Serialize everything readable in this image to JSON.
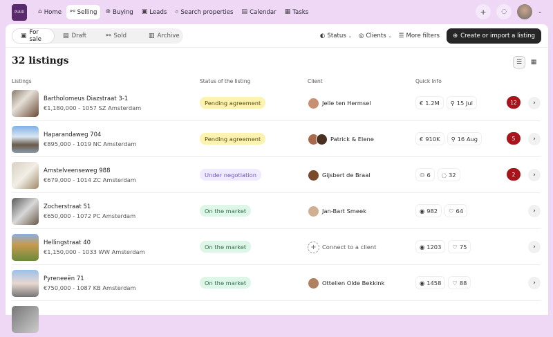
{
  "logo": "PUUR",
  "nav": [
    {
      "label": "Home",
      "icon": "home-icon",
      "glyph": "⌂"
    },
    {
      "label": "Selling",
      "icon": "selling-icon",
      "glyph": "⚯",
      "active": true
    },
    {
      "label": "Buying",
      "icon": "buying-icon",
      "glyph": "⊛"
    },
    {
      "label": "Leads",
      "icon": "leads-icon",
      "glyph": "▣"
    },
    {
      "label": "Search properties",
      "icon": "search-icon",
      "glyph": "⌕"
    },
    {
      "label": "Calendar",
      "icon": "calendar-icon",
      "glyph": "▤"
    },
    {
      "label": "Tasks",
      "icon": "tasks-icon",
      "glyph": "▦"
    }
  ],
  "tabs": [
    {
      "label": "For sale",
      "glyph": "▣",
      "active": true
    },
    {
      "label": "Draft",
      "glyph": "▤"
    },
    {
      "label": "Sold",
      "glyph": "⚯"
    },
    {
      "label": "Archive",
      "glyph": "▥"
    }
  ],
  "filters": {
    "status": "Status",
    "clients": "Clients",
    "more": "More filters",
    "create": "Create or import a listing"
  },
  "title": "32 listings",
  "headers": {
    "listings": "Listings",
    "status": "Status of the listing",
    "client": "Client",
    "quick": "Quick Info"
  },
  "colors": {
    "pending_bg": "#fdf3b0",
    "pending_fg": "#5a4a10",
    "nego_bg": "#efeafd",
    "nego_fg": "#6b55d0",
    "market_bg": "#ddf6e8",
    "market_fg": "#2e6b48",
    "badge": "#a8141a"
  },
  "rows": [
    {
      "name": "Bartholomeus Diazstraat 3-1",
      "sub": "€1,180,000 - 1057 SZ Amsterdam",
      "status": "Pending agreement",
      "kind": "pending",
      "client": "Jelle ten Hermsel",
      "q1": "1.2M",
      "q1g": "€",
      "q2": "15 Jul",
      "q2g": "⚲",
      "badge": "12"
    },
    {
      "name": "Haparandaweg 704",
      "sub": "€895,000 - 1019 NC Amsterdam",
      "status": "Pending agreement",
      "kind": "pending",
      "client": "Patrick & Elene",
      "q1": "910K",
      "q1g": "€",
      "q2": "16 Aug",
      "q2g": "⚲",
      "badge": "5"
    },
    {
      "name": "Amstelveenseweg 988",
      "sub": "€679,000 - 1014 ZC Amsterdam",
      "status": "Under negotiation",
      "kind": "nego",
      "client": "Gijsbert de Braal",
      "q1": "6",
      "q1g": "⚇",
      "q2": "32",
      "q2g": "◌",
      "badge": "2"
    },
    {
      "name": "Zocherstraat 51",
      "sub": "€650,000 - 1072 PC Amsterdam",
      "status": "On the market",
      "kind": "market",
      "client": "Jan-Bart Smeek",
      "q1": "982",
      "q1g": "◉",
      "q2": "64",
      "q2g": "♡"
    },
    {
      "name": "Hellingstraat 40",
      "sub": "€1,150,000 - 1033 WW Amsterdam",
      "status": "On the market",
      "kind": "market",
      "client": "Connect to a client",
      "q1": "1203",
      "q1g": "◉",
      "q2": "75",
      "q2g": "♡"
    },
    {
      "name": "Pyreneeën 71",
      "sub": "€750,000 - 1087 KB Amsterdam",
      "status": "On the market",
      "kind": "market",
      "client": "Ottelien Olde Bekkink",
      "q1": "1458",
      "q1g": "◉",
      "q2": "88",
      "q2g": "♡"
    }
  ]
}
